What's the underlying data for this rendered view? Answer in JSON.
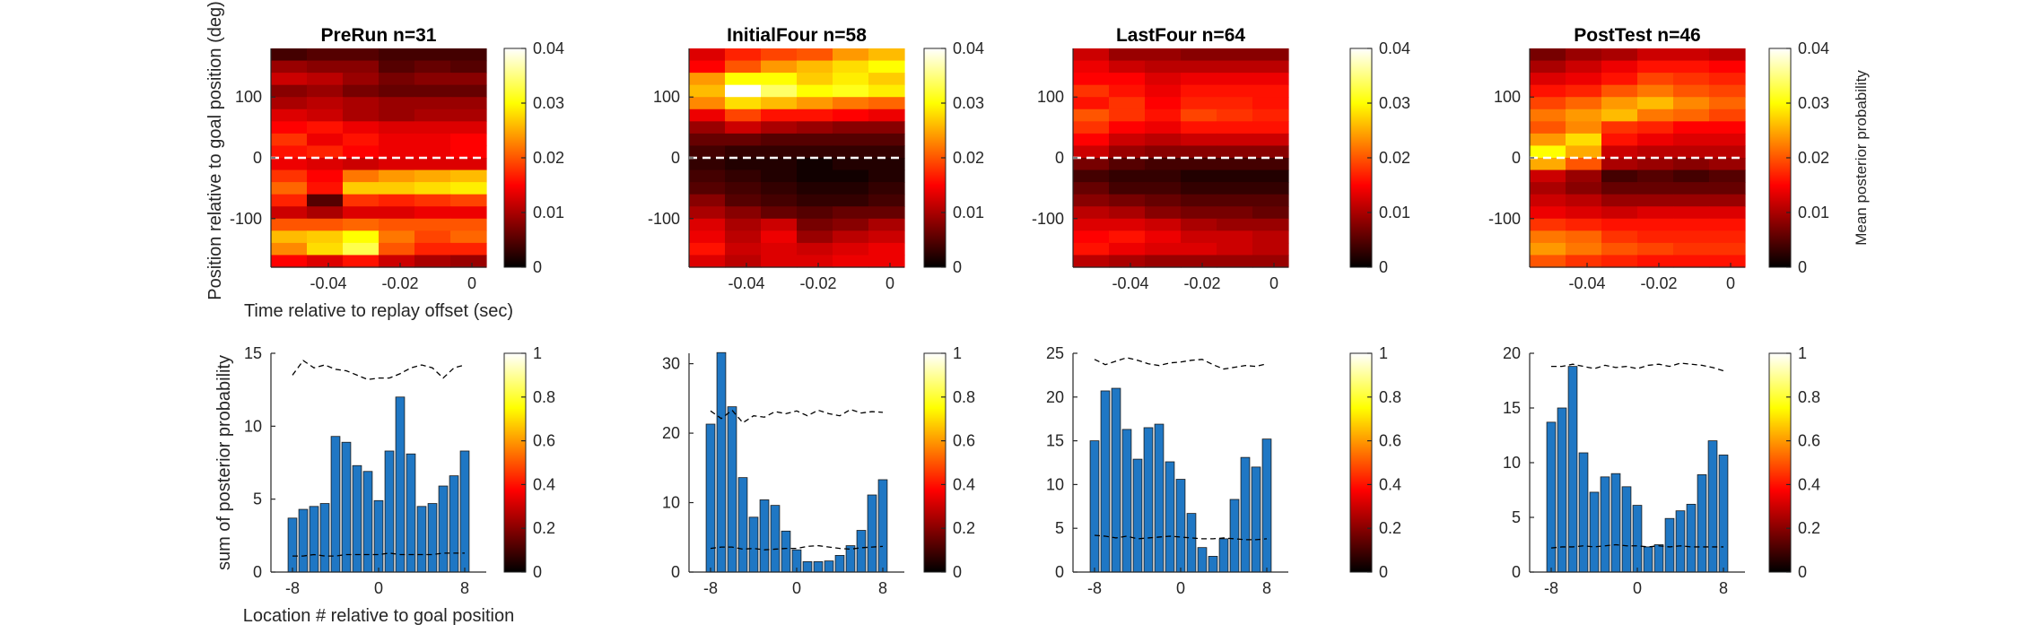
{
  "chart_data": [
    {
      "type": "heatmap",
      "title": "PreRun n=31",
      "xlabel": "Time relative to replay offset (sec)",
      "ylabel": "Position relative to goal position (deg)",
      "xlim": [
        -0.056,
        0.004
      ],
      "ylim": [
        -180,
        180
      ],
      "xticks": [
        "-0.04",
        "-0.02",
        "0"
      ],
      "yticks": [
        "100",
        "0",
        "-100"
      ],
      "colorbar": {
        "clim": [
          0,
          0.04
        ],
        "ticks": [
          "0",
          "0.01",
          "0.02",
          "0.03",
          "0.04"
        ],
        "label": ""
      },
      "goal_line": 0,
      "columns": 6,
      "rows": 18,
      "values": [
        [
          0.004,
          0.005,
          0.005,
          0.004,
          0.004,
          0.004
        ],
        [
          0.009,
          0.008,
          0.008,
          0.005,
          0.006,
          0.005
        ],
        [
          0.012,
          0.011,
          0.009,
          0.007,
          0.008,
          0.008
        ],
        [
          0.008,
          0.009,
          0.007,
          0.006,
          0.006,
          0.006
        ],
        [
          0.01,
          0.011,
          0.01,
          0.009,
          0.009,
          0.009
        ],
        [
          0.013,
          0.012,
          0.01,
          0.009,
          0.01,
          0.01
        ],
        [
          0.015,
          0.016,
          0.014,
          0.013,
          0.013,
          0.013
        ],
        [
          0.018,
          0.014,
          0.016,
          0.014,
          0.014,
          0.015
        ],
        [
          0.016,
          0.017,
          0.015,
          0.014,
          0.014,
          0.015
        ],
        [
          0.014,
          0.013,
          0.012,
          0.013,
          0.013,
          0.013
        ],
        [
          0.018,
          0.015,
          0.022,
          0.024,
          0.025,
          0.026
        ],
        [
          0.021,
          0.016,
          0.027,
          0.027,
          0.028,
          0.029
        ],
        [
          0.017,
          0.005,
          0.018,
          0.017,
          0.018,
          0.019
        ],
        [
          0.012,
          0.01,
          0.013,
          0.013,
          0.014,
          0.014
        ],
        [
          0.02,
          0.02,
          0.021,
          0.02,
          0.02,
          0.02
        ],
        [
          0.026,
          0.027,
          0.03,
          0.022,
          0.019,
          0.021
        ],
        [
          0.023,
          0.028,
          0.033,
          0.02,
          0.017,
          0.017
        ],
        [
          0.015,
          0.013,
          0.016,
          0.012,
          0.01,
          0.009
        ]
      ]
    },
    {
      "type": "heatmap",
      "title": "InitialFour n=58",
      "xlabel": "",
      "ylabel": "",
      "xlim": [
        -0.056,
        0.004
      ],
      "ylim": [
        -180,
        180
      ],
      "xticks": [
        "-0.04",
        "-0.02",
        "0"
      ],
      "yticks": [
        "100",
        "0",
        "-100"
      ],
      "colorbar": {
        "clim": [
          0,
          0.04
        ],
        "ticks": [
          "0",
          "0.01",
          "0.02",
          "0.03",
          "0.04"
        ],
        "label": ""
      },
      "goal_line": 0,
      "columns": 6,
      "rows": 18,
      "values": [
        [
          0.013,
          0.017,
          0.019,
          0.02,
          0.024,
          0.026
        ],
        [
          0.015,
          0.02,
          0.024,
          0.026,
          0.028,
          0.03
        ],
        [
          0.024,
          0.03,
          0.03,
          0.027,
          0.029,
          0.027
        ],
        [
          0.026,
          0.04,
          0.034,
          0.03,
          0.031,
          0.029
        ],
        [
          0.023,
          0.028,
          0.026,
          0.024,
          0.022,
          0.021
        ],
        [
          0.014,
          0.019,
          0.016,
          0.016,
          0.015,
          0.014
        ],
        [
          0.009,
          0.012,
          0.01,
          0.009,
          0.008,
          0.008
        ],
        [
          0.006,
          0.006,
          0.005,
          0.005,
          0.005,
          0.005
        ],
        [
          0.004,
          0.003,
          0.003,
          0.003,
          0.003,
          0.003
        ],
        [
          0.003,
          0.002,
          0.002,
          0.001,
          0.002,
          0.002
        ],
        [
          0.004,
          0.003,
          0.002,
          0.001,
          0.001,
          0.002
        ],
        [
          0.005,
          0.004,
          0.003,
          0.002,
          0.002,
          0.003
        ],
        [
          0.008,
          0.005,
          0.004,
          0.003,
          0.003,
          0.004
        ],
        [
          0.01,
          0.008,
          0.006,
          0.005,
          0.006,
          0.006
        ],
        [
          0.013,
          0.01,
          0.012,
          0.007,
          0.008,
          0.01
        ],
        [
          0.014,
          0.011,
          0.014,
          0.009,
          0.011,
          0.012
        ],
        [
          0.016,
          0.012,
          0.013,
          0.012,
          0.013,
          0.014
        ],
        [
          0.013,
          0.011,
          0.013,
          0.013,
          0.014,
          0.014
        ]
      ]
    },
    {
      "type": "heatmap",
      "title": "LastFour n=64",
      "xlabel": "",
      "ylabel": "",
      "xlim": [
        -0.056,
        0.004
      ],
      "ylim": [
        -180,
        180
      ],
      "xticks": [
        "-0.04",
        "-0.02",
        "0"
      ],
      "yticks": [
        "100",
        "0",
        "-100"
      ],
      "colorbar": {
        "clim": [
          0,
          0.04
        ],
        "ticks": [
          "0",
          "0.01",
          "0.02",
          "0.03",
          "0.04"
        ],
        "label": ""
      },
      "goal_line": 0,
      "columns": 6,
      "rows": 18,
      "values": [
        [
          0.012,
          0.009,
          0.009,
          0.008,
          0.008,
          0.008
        ],
        [
          0.014,
          0.012,
          0.011,
          0.011,
          0.011,
          0.011
        ],
        [
          0.015,
          0.015,
          0.013,
          0.014,
          0.014,
          0.014
        ],
        [
          0.018,
          0.016,
          0.014,
          0.016,
          0.016,
          0.016
        ],
        [
          0.016,
          0.018,
          0.015,
          0.017,
          0.017,
          0.016
        ],
        [
          0.02,
          0.018,
          0.016,
          0.019,
          0.018,
          0.017
        ],
        [
          0.018,
          0.015,
          0.014,
          0.016,
          0.016,
          0.016
        ],
        [
          0.015,
          0.012,
          0.011,
          0.012,
          0.012,
          0.012
        ],
        [
          0.012,
          0.009,
          0.008,
          0.008,
          0.008,
          0.008
        ],
        [
          0.007,
          0.005,
          0.004,
          0.004,
          0.004,
          0.004
        ],
        [
          0.004,
          0.003,
          0.003,
          0.002,
          0.002,
          0.002
        ],
        [
          0.006,
          0.004,
          0.004,
          0.003,
          0.003,
          0.003
        ],
        [
          0.008,
          0.007,
          0.006,
          0.005,
          0.005,
          0.005
        ],
        [
          0.011,
          0.01,
          0.008,
          0.007,
          0.007,
          0.006
        ],
        [
          0.013,
          0.013,
          0.012,
          0.01,
          0.009,
          0.009
        ],
        [
          0.015,
          0.016,
          0.014,
          0.012,
          0.012,
          0.011
        ],
        [
          0.016,
          0.014,
          0.013,
          0.013,
          0.012,
          0.011
        ],
        [
          0.011,
          0.01,
          0.009,
          0.009,
          0.009,
          0.009
        ]
      ]
    },
    {
      "type": "heatmap",
      "title": "PostTest n=46",
      "xlabel": "",
      "ylabel": "",
      "xlim": [
        -0.056,
        0.004
      ],
      "ylim": [
        -180,
        180
      ],
      "xticks": [
        "-0.04",
        "-0.02",
        "0"
      ],
      "yticks": [
        "100",
        "0",
        "-100"
      ],
      "colorbar": {
        "clim": [
          0,
          0.04
        ],
        "ticks": [
          "0",
          "0.01",
          "0.02",
          "0.03",
          "0.04"
        ],
        "label": "Mean posterior probability"
      },
      "goal_line": 0,
      "columns": 6,
      "rows": 18,
      "values": [
        [
          0.007,
          0.009,
          0.01,
          0.012,
          0.012,
          0.011
        ],
        [
          0.01,
          0.012,
          0.014,
          0.016,
          0.016,
          0.015
        ],
        [
          0.013,
          0.014,
          0.016,
          0.019,
          0.018,
          0.017
        ],
        [
          0.016,
          0.017,
          0.02,
          0.022,
          0.02,
          0.019
        ],
        [
          0.019,
          0.021,
          0.024,
          0.026,
          0.023,
          0.021
        ],
        [
          0.022,
          0.024,
          0.026,
          0.022,
          0.021,
          0.019
        ],
        [
          0.02,
          0.023,
          0.018,
          0.017,
          0.015,
          0.015
        ],
        [
          0.024,
          0.028,
          0.016,
          0.014,
          0.013,
          0.013
        ],
        [
          0.03,
          0.025,
          0.012,
          0.011,
          0.011,
          0.011
        ],
        [
          0.025,
          0.02,
          0.01,
          0.009,
          0.008,
          0.009
        ],
        [
          0.012,
          0.009,
          0.004,
          0.005,
          0.004,
          0.005
        ],
        [
          0.01,
          0.008,
          0.006,
          0.006,
          0.006,
          0.006
        ],
        [
          0.012,
          0.011,
          0.009,
          0.009,
          0.009,
          0.009
        ],
        [
          0.014,
          0.013,
          0.012,
          0.013,
          0.013,
          0.013
        ],
        [
          0.018,
          0.017,
          0.016,
          0.016,
          0.016,
          0.016
        ],
        [
          0.022,
          0.021,
          0.018,
          0.017,
          0.017,
          0.017
        ],
        [
          0.024,
          0.022,
          0.02,
          0.019,
          0.018,
          0.018
        ],
        [
          0.02,
          0.018,
          0.017,
          0.016,
          0.016,
          0.016
        ]
      ]
    },
    {
      "type": "bar",
      "title": "",
      "xlabel": "Location # relative to goal position",
      "ylabel": "sum of posterior probability",
      "categories": [
        -8,
        -7,
        -6,
        -5,
        -4,
        -3,
        -2,
        -1,
        0,
        1,
        2,
        3,
        4,
        5,
        6,
        7,
        8
      ],
      "xticks": [
        "-8",
        "0",
        "8"
      ],
      "ylim": [
        0,
        15
      ],
      "yticks": [
        "0",
        "5",
        "10",
        "15"
      ],
      "values": [
        3.7,
        4.3,
        4.5,
        4.7,
        9.3,
        8.9,
        7.3,
        6.9,
        4.9,
        8.3,
        12.0,
        8.1,
        4.5,
        4.7,
        5.9,
        6.6,
        8.3
      ],
      "bar_color": "#1f77c4",
      "upper_dashed": [
        13.5,
        14.5,
        14.0,
        14.2,
        13.9,
        13.8,
        13.5,
        13.2,
        13.3,
        13.3,
        13.6,
        14.0,
        14.2,
        14.0,
        13.3,
        14.0,
        14.2
      ],
      "lower_dashed": [
        1.1,
        1.1,
        1.2,
        1.1,
        1.1,
        1.2,
        1.2,
        1.2,
        1.2,
        1.3,
        1.2,
        1.2,
        1.2,
        1.2,
        1.3,
        1.3,
        1.3
      ],
      "colorbar": {
        "clim": [
          0,
          1
        ],
        "ticks": [
          "0",
          "0.2",
          "0.4",
          "0.6",
          "0.8",
          "1"
        ]
      }
    },
    {
      "type": "bar",
      "title": "",
      "xlabel": "",
      "ylabel": "",
      "categories": [
        -8,
        -7,
        -6,
        -5,
        -4,
        -3,
        -2,
        -1,
        0,
        1,
        2,
        3,
        4,
        5,
        6,
        7,
        8
      ],
      "xticks": [
        "-8",
        "0",
        "8"
      ],
      "ylim": [
        0,
        31.5
      ],
      "yticks": [
        "0",
        "10",
        "20",
        "30"
      ],
      "values": [
        21.3,
        31.6,
        23.8,
        13.6,
        7.9,
        10.4,
        9.6,
        5.9,
        3.2,
        1.5,
        1.5,
        1.6,
        2.4,
        3.8,
        6.0,
        11.1,
        13.3
      ],
      "bar_color": "#1f77c4",
      "upper_dashed": [
        23.2,
        22.1,
        23.3,
        21.5,
        22.5,
        22.3,
        23.1,
        22.8,
        23.2,
        22.5,
        23.3,
        22.8,
        22.5,
        23.4,
        22.9,
        23.1,
        23.0
      ],
      "lower_dashed": [
        3.4,
        3.6,
        3.6,
        3.3,
        3.4,
        3.2,
        3.3,
        3.4,
        3.4,
        3.7,
        3.8,
        3.6,
        3.4,
        3.3,
        3.5,
        3.6,
        3.7
      ],
      "colorbar": {
        "clim": [
          0,
          1
        ],
        "ticks": [
          "0",
          "0.2",
          "0.4",
          "0.6",
          "0.8",
          "1"
        ]
      }
    },
    {
      "type": "bar",
      "title": "",
      "xlabel": "",
      "ylabel": "",
      "categories": [
        -8,
        -7,
        -6,
        -5,
        -4,
        -3,
        -2,
        -1,
        0,
        1,
        2,
        3,
        4,
        5,
        6,
        7,
        8
      ],
      "xticks": [
        "-8",
        "0",
        "8"
      ],
      "ylim": [
        0,
        25
      ],
      "yticks": [
        "0",
        "5",
        "10",
        "15",
        "20",
        "25"
      ],
      "values": [
        15.0,
        20.7,
        21.0,
        16.3,
        12.9,
        16.5,
        16.9,
        12.6,
        10.6,
        6.7,
        2.8,
        1.8,
        3.8,
        8.3,
        13.1,
        12.0,
        15.2
      ],
      "bar_color": "#1f77c4",
      "upper_dashed": [
        24.3,
        23.7,
        24.1,
        24.5,
        24.2,
        23.8,
        23.6,
        23.9,
        24.0,
        24.2,
        24.3,
        23.7,
        23.2,
        23.4,
        23.6,
        23.5,
        23.8
      ],
      "lower_dashed": [
        4.2,
        4.1,
        3.9,
        4.1,
        3.8,
        3.9,
        4.0,
        4.1,
        4.0,
        3.9,
        3.8,
        3.8,
        3.9,
        3.8,
        3.7,
        3.7,
        3.8
      ],
      "colorbar": {
        "clim": [
          0,
          1
        ],
        "ticks": [
          "0",
          "0.2",
          "0.4",
          "0.6",
          "0.8",
          "1"
        ]
      }
    },
    {
      "type": "bar",
      "title": "",
      "xlabel": "",
      "ylabel": "",
      "categories": [
        -8,
        -7,
        -6,
        -5,
        -4,
        -3,
        -2,
        -1,
        0,
        1,
        2,
        3,
        4,
        5,
        6,
        7,
        8
      ],
      "xticks": [
        "-8",
        "0",
        "8"
      ],
      "ylim": [
        0,
        20
      ],
      "yticks": [
        "0",
        "5",
        "10",
        "15",
        "20"
      ],
      "values": [
        13.7,
        15.0,
        18.8,
        10.9,
        7.3,
        8.7,
        9.0,
        7.8,
        6.1,
        2.3,
        2.5,
        4.9,
        5.6,
        6.2,
        8.9,
        12.0,
        10.7
      ],
      "bar_color": "#1f77c4",
      "upper_dashed": [
        18.8,
        18.8,
        19.0,
        18.8,
        18.6,
        18.9,
        18.7,
        18.8,
        18.6,
        18.9,
        19.0,
        18.8,
        19.1,
        19.0,
        18.9,
        18.7,
        18.4
      ],
      "lower_dashed": [
        2.2,
        2.3,
        2.3,
        2.4,
        2.3,
        2.4,
        2.5,
        2.4,
        2.4,
        2.3,
        2.4,
        2.3,
        2.4,
        2.3,
        2.3,
        2.3,
        2.3
      ],
      "colorbar": {
        "clim": [
          0,
          1
        ],
        "ticks": [
          "0",
          "0.2",
          "0.4",
          "0.6",
          "0.8",
          "1"
        ]
      }
    }
  ]
}
